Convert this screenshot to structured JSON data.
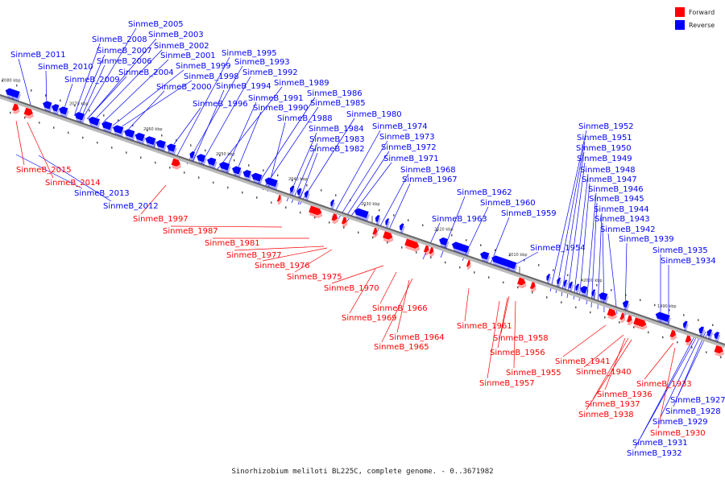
{
  "caption": "Sinorhizobium meliloti BL225C, complete genome. - 0..3671982",
  "legend": {
    "forward_label": "Forward",
    "reverse_label": "Reverse",
    "forward_color": "#ff0000",
    "reverse_color": "#0000ff"
  },
  "axis": {
    "backbone_color": "#888888",
    "ticks": [
      "2080 kbp",
      "2070 kbp",
      "2060 kbp",
      "2050 kbp",
      "2040 kbp",
      "2030 kbp",
      "2020 kbp",
      "2010 kbp",
      "2000 kbp",
      "1990 kbp"
    ]
  },
  "genes": {
    "forward": [
      "SinmeB_2015",
      "SinmeB_2014",
      "SinmeB_1997",
      "SinmeB_1987",
      "SinmeB_1981",
      "SinmeB_1977",
      "SinmeB_1976",
      "SinmeB_1975",
      "SinmeB_1970",
      "SinmeB_1966",
      "SinmeB_1969",
      "SinmeB_1964",
      "SinmeB_1965",
      "SinmeB_1961",
      "SinmeB_1958",
      "SinmeB_1956",
      "SinmeB_1955",
      "SinmeB_1957",
      "SinmeB_1941",
      "SinmeB_1940",
      "SinmeB_1936",
      "SinmeB_1937",
      "SinmeB_1938",
      "SinmeB_1933",
      "SinmeB_1930"
    ],
    "reverse": [
      "SinmeB_2005",
      "SinmeB_2003",
      "SinmeB_2008",
      "SinmeB_2002",
      "SinmeB_2007",
      "SinmeB_2001",
      "SinmeB_2011",
      "SinmeB_2006",
      "SinmeB_1995",
      "SinmeB_2010",
      "SinmeB_1999",
      "SinmeB_1993",
      "SinmeB_2004",
      "SinmeB_1998",
      "SinmeB_1992",
      "SinmeB_2009",
      "SinmeB_2000",
      "SinmeB_1989",
      "SinmeB_1994",
      "SinmeB_1986",
      "SinmeB_1991",
      "SinmeB_1985",
      "SinmeB_1996",
      "SinmeB_1990",
      "SinmeB_1988",
      "SinmeB_1980",
      "SinmeB_1974",
      "SinmeB_1984",
      "SinmeB_1973",
      "SinmeB_1983",
      "SinmeB_1972",
      "SinmeB_1982",
      "SinmeB_1971",
      "SinmeB_1968",
      "SinmeB_1967",
      "SinmeB_1962",
      "SinmeB_1960",
      "SinmeB_1963",
      "SinmeB_1959",
      "SinmeB_1954",
      "SinmeB_2013",
      "SinmeB_2012",
      "SinmeB_1952",
      "SinmeB_1951",
      "SinmeB_1950",
      "SinmeB_1949",
      "SinmeB_1948",
      "SinmeB_1947",
      "SinmeB_1946",
      "SinmeB_1945",
      "SinmeB_1944",
      "SinmeB_1943",
      "SinmeB_1942",
      "SinmeB_1939",
      "SinmeB_1935",
      "SinmeB_1934",
      "SinmeB_1927",
      "SinmeB_1928",
      "SinmeB_1929",
      "SinmeB_1931",
      "SinmeB_1932"
    ]
  }
}
